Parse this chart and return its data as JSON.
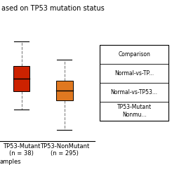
{
  "title": "ased on TP53 mutation status",
  "xlabel": "amples",
  "box1": {
    "label": "TP53-Mutant\n(n = 38)",
    "color": "#cc2200",
    "median": 9.5,
    "q1": 8.7,
    "q3": 10.3,
    "whisker_low": 7.5,
    "whisker_high": 11.9
  },
  "box2": {
    "label": "TP53-NonMutant\n(n = 295)",
    "color": "#e07820",
    "median": 8.75,
    "q1": 8.1,
    "q3": 9.35,
    "whisker_low": 6.2,
    "whisker_high": 10.7
  },
  "ylim": [
    5.5,
    13.0
  ],
  "table_rows": [
    "Comparison",
    "Normal-vs-TP...",
    "Normal-vs-TP53...",
    "TP53-Mutant\nNonmu..."
  ],
  "background_color": "#ffffff",
  "title_fontsize": 7,
  "label_fontsize": 6,
  "tick_fontsize": 6
}
